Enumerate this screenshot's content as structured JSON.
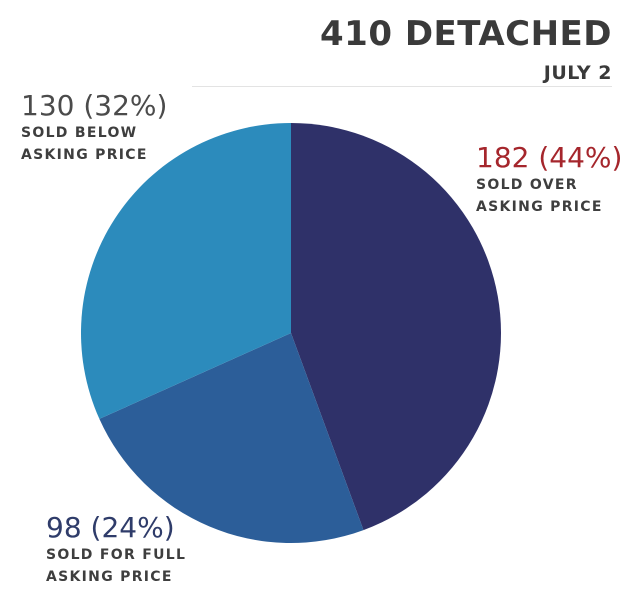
{
  "chart_data": {
    "type": "pie",
    "title": "410 DETACHED",
    "subtitle": "JULY 2",
    "slices": [
      {
        "value": 182,
        "value_label": "182 (44%)",
        "label": "SOLD OVER ASKING PRICE",
        "color": "#2f3169"
      },
      {
        "value": 98,
        "value_label": "98 (24%)",
        "label": "SOLD FOR FULL ASKING PRICE",
        "color": "#2c5e99"
      },
      {
        "value": 130,
        "value_label": "130 (32%)",
        "label": "SOLD BELOW ASKING PRICE",
        "color": "#2c8bbc"
      }
    ],
    "total": 410,
    "legend": "none"
  }
}
